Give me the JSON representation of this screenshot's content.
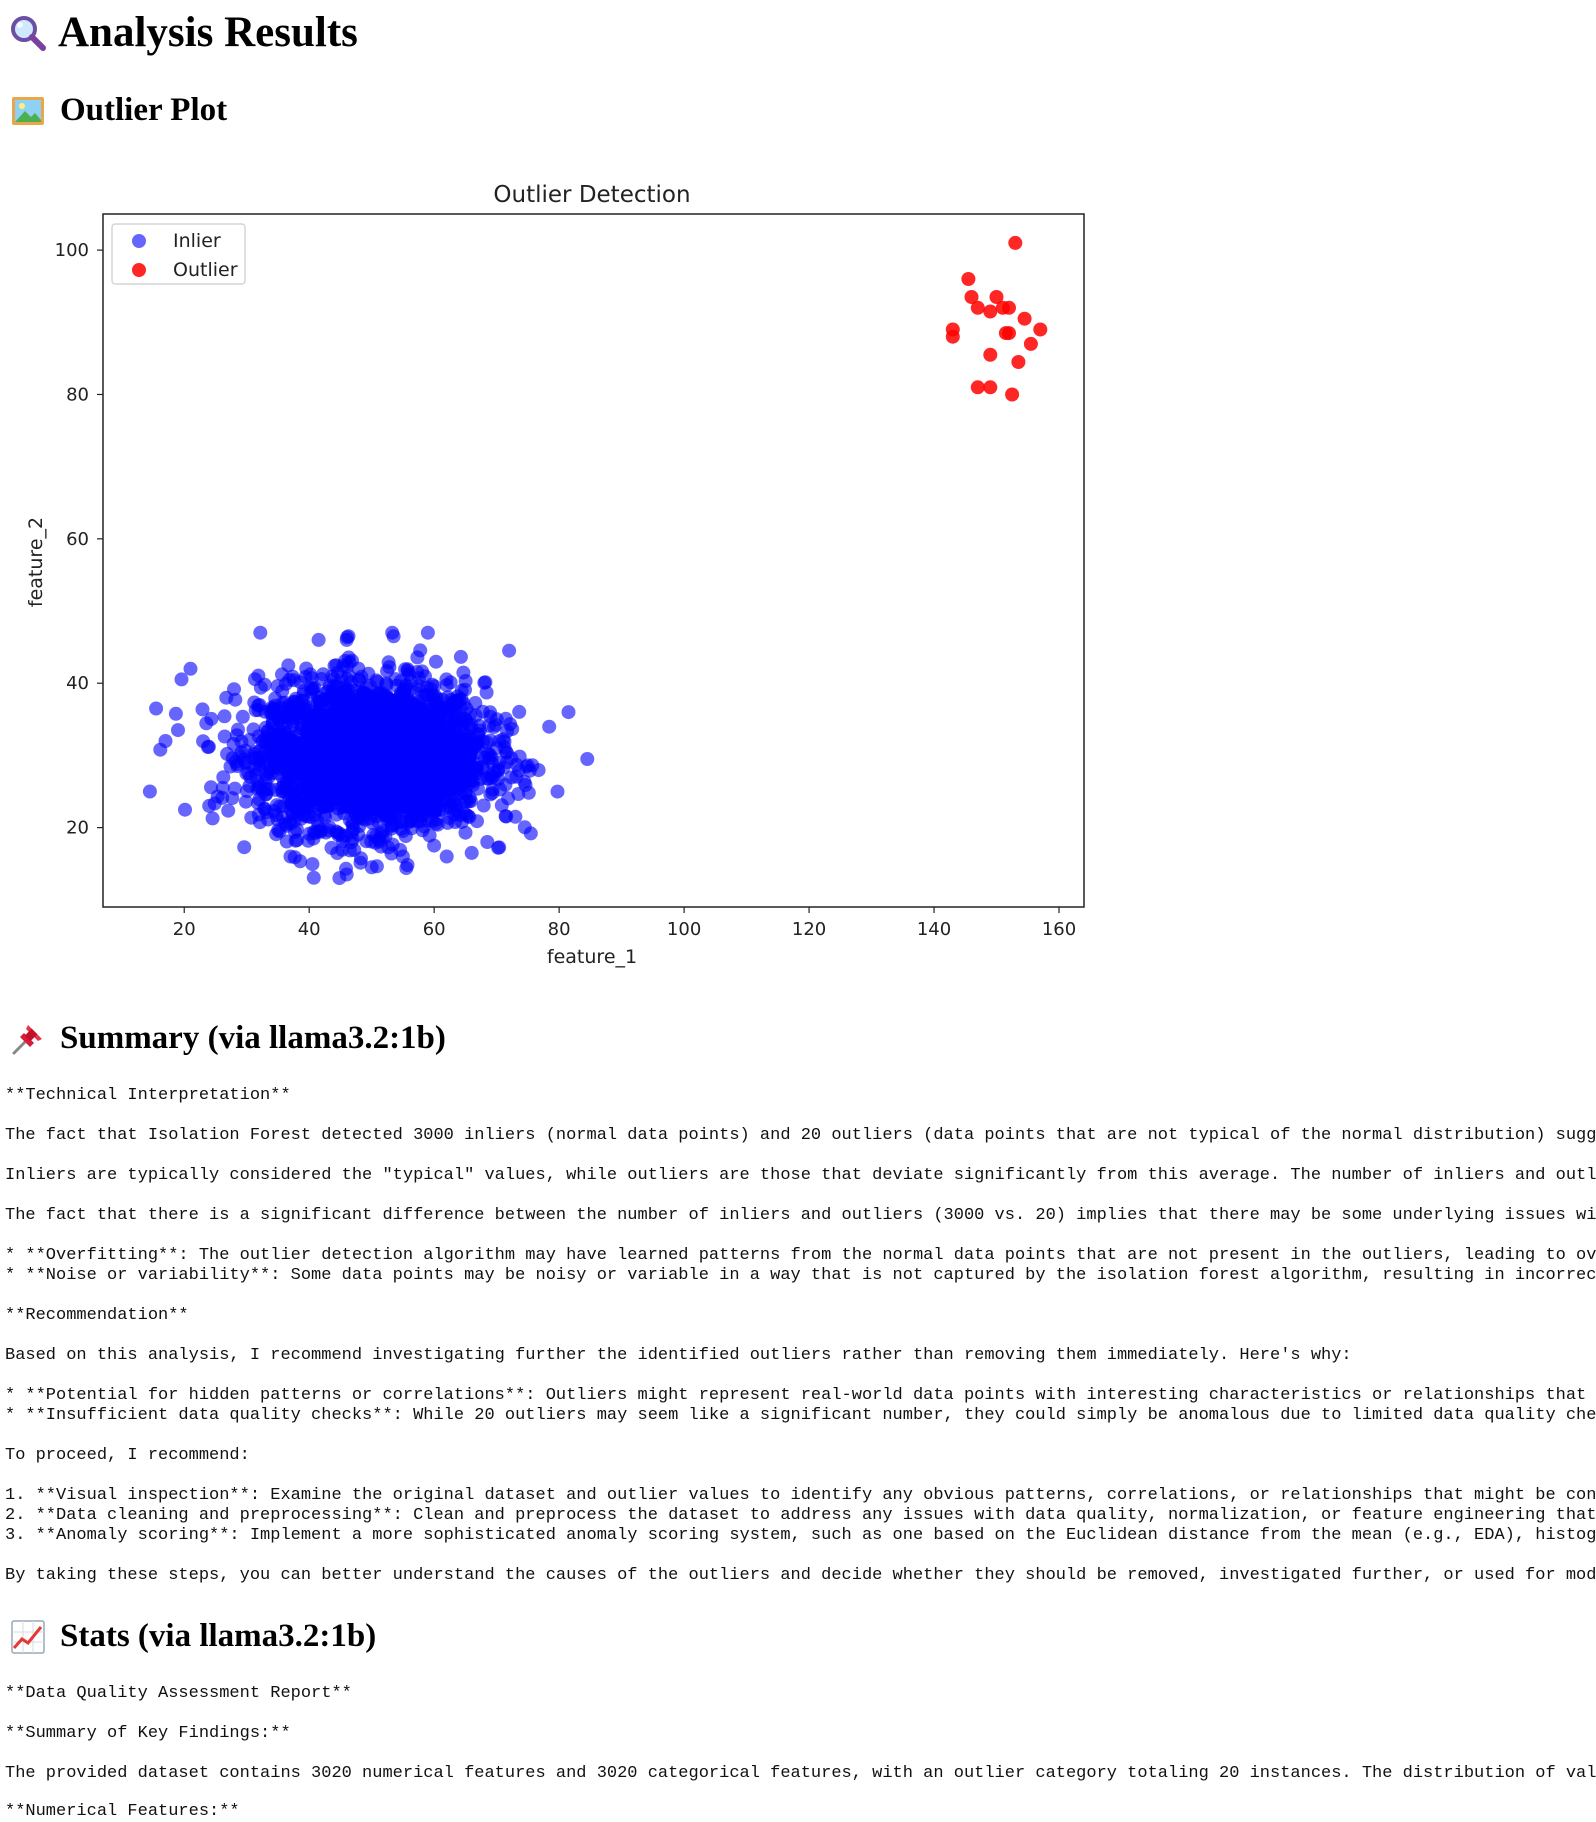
{
  "page": {
    "title": "Analysis Results",
    "title_icon": "magnifier-icon"
  },
  "sections": {
    "plot": {
      "heading": "Outlier Plot",
      "icon": "picture-icon"
    },
    "summary": {
      "heading": "Summary (via llama3.2:1b)",
      "icon": "pushpin-icon",
      "paragraphs": [
        "**Technical Interpretation**",
        "The fact that Isolation Forest detected 3000 inliers (normal data points) and 20 outliers (data points that are not typical of the normal distribution) sugg",
        "Inliers are typically considered the \"typical\" values, while outliers are those that deviate significantly from this average. The number of inliers and outl",
        "The fact that there is a significant difference between the number of inliers and outliers (3000 vs. 20) implies that there may be some underlying issues wi",
        "* **Overfitting**: The outlier detection algorithm may have learned patterns from the normal data points that are not present in the outliers, leading to ov\n* **Noise or variability**: Some data points may be noisy or variable in a way that is not captured by the isolation forest algorithm, resulting in incorrec",
        "**Recommendation**",
        "Based on this analysis, I recommend investigating further the identified outliers rather than removing them immediately. Here's why:",
        "* **Potential for hidden patterns or correlations**: Outliers might represent real-world data points with interesting characteristics or relationships that\n* **Insufficient data quality checks**: While 20 outliers may seem like a significant number, they could simply be anomalous due to limited data quality che",
        "To proceed, I recommend:",
        "1. **Visual inspection**: Examine the original dataset and outlier values to identify any obvious patterns, correlations, or relationships that might be con\n2. **Data cleaning and preprocessing**: Clean and preprocess the dataset to address any issues with data quality, normalization, or feature engineering that\n3. **Anomaly scoring**: Implement a more sophisticated anomaly scoring system, such as one based on the Euclidean distance from the mean (e.g., EDA), histog",
        "By taking these steps, you can better understand the causes of the outliers and decide whether they should be removed, investigated further, or used for mod"
      ]
    },
    "stats": {
      "heading": "Stats (via llama3.2:1b)",
      "icon": "chart-increasing-icon",
      "paragraphs": [
        "**Data Quality Assessment Report**",
        "**Summary of Key Findings:**",
        "The provided dataset contains 3020 numerical features and 3020 categorical features, with an outlier category totaling 20 instances. The distribution of val",
        "**Numerical Features:**"
      ]
    }
  },
  "chart_data": {
    "type": "scatter",
    "title": "Outlier Detection",
    "xlabel": "feature_1",
    "ylabel": "feature_2",
    "xlim": [
      7,
      164
    ],
    "ylim": [
      9,
      105
    ],
    "xticks": [
      20,
      40,
      60,
      80,
      100,
      120,
      140,
      160
    ],
    "yticks": [
      20,
      40,
      60,
      80,
      100
    ],
    "legend_position": "top-left",
    "grid": false,
    "series": [
      {
        "name": "Inlier",
        "color": "#0000ff",
        "count": 3000,
        "mean": [
          50,
          30
        ],
        "std": [
          10,
          5
        ],
        "range_x": [
          14,
          85
        ],
        "range_y": [
          13,
          47
        ],
        "edge_points": [
          [
            14.5,
            25
          ],
          [
            15.5,
            36.5
          ],
          [
            17,
            32
          ],
          [
            21,
            42
          ],
          [
            19,
            33.5
          ],
          [
            24,
            23
          ],
          [
            84.5,
            29.5
          ],
          [
            81.5,
            36
          ],
          [
            72,
            44.5
          ],
          [
            59,
            47
          ],
          [
            53.5,
            46.5
          ],
          [
            46,
            46
          ],
          [
            41.5,
            46
          ],
          [
            46,
            13.5
          ],
          [
            50,
            14.5
          ],
          [
            37,
            16
          ],
          [
            68.5,
            18
          ],
          [
            73,
            21.5
          ],
          [
            55,
            16
          ],
          [
            62,
            16
          ],
          [
            66,
            16.5
          ]
        ]
      },
      {
        "name": "Outlier",
        "color": "#ff0000",
        "points": [
          [
            153,
            101
          ],
          [
            145.5,
            96
          ],
          [
            146,
            93.5
          ],
          [
            147,
            92
          ],
          [
            149,
            91.5
          ],
          [
            150,
            93.5
          ],
          [
            151,
            92
          ],
          [
            152,
            92
          ],
          [
            154.5,
            90.5
          ],
          [
            143,
            89
          ],
          [
            143,
            88
          ],
          [
            151.5,
            88.5
          ],
          [
            152,
            88.5
          ],
          [
            157,
            89
          ],
          [
            155.5,
            87
          ],
          [
            149,
            85.5
          ],
          [
            153.5,
            84.5
          ],
          [
            147,
            81
          ],
          [
            149,
            81
          ],
          [
            152.5,
            80
          ]
        ]
      }
    ]
  }
}
